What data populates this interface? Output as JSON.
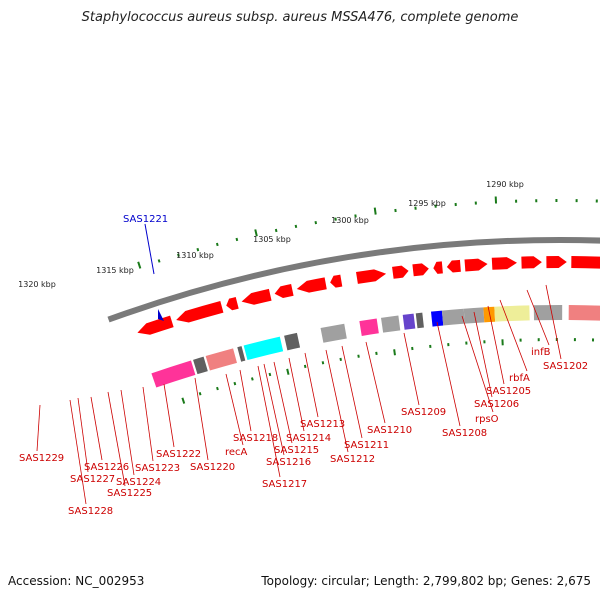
{
  "title": "Staphylococcus aureus subsp. aureus MSSA476, complete genome",
  "footer": {
    "accession": "Accession: NC_002953",
    "summary": "Topology: circular; Length: 2,799,802 bp; Genes: 2,675"
  },
  "scale": {
    "labels": [
      "1290 kbp",
      "1295 kbp",
      "1300 kbp",
      "1305 kbp",
      "1310 kbp",
      "1315 kbp",
      "1320 kbp"
    ]
  },
  "colors": {
    "backbone": "#7a7a7a",
    "scale_ticks": "#1a7a1a",
    "gene_red": "#ff0000",
    "label_red": "#cc0000",
    "highlight_blue": "#0000cc",
    "pink": "#ff3399",
    "salmon": "#f08080",
    "cyan": "#00ffff",
    "gray": "#a0a0a0",
    "dark_gray": "#606060",
    "orange": "#ff9900",
    "yellow": "#eeee99",
    "blue": "#0000ff",
    "purple": "#6644cc"
  },
  "highlighted_gene": {
    "label": "SAS1221"
  },
  "gene_labels": [
    "SAS1229",
    "SAS1228",
    "SAS1227",
    "SAS1226",
    "SAS1225",
    "SAS1224",
    "SAS1223",
    "SAS1222",
    "SAS1220",
    "recA",
    "SAS1218",
    "SAS1217",
    "SAS1216",
    "SAS1215",
    "SAS1214",
    "SAS1213",
    "SAS1212",
    "SAS1211",
    "SAS1210",
    "SAS1209",
    "SAS1208",
    "rpsO",
    "SAS1206",
    "SAS1205",
    "rbfA",
    "infB",
    "SAS1202"
  ]
}
